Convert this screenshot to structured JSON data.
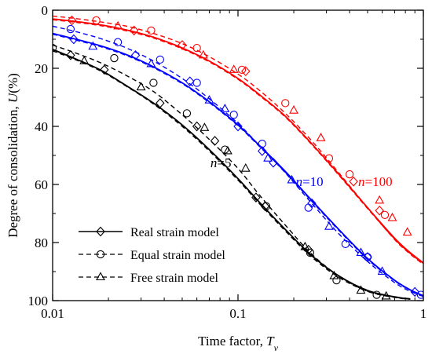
{
  "chart_data": {
    "type": "line",
    "xlabel": "Time factor, ",
    "xlabel_symbol": "T",
    "xlabel_sub": "v",
    "ylabel": "Degree of consolidation, ",
    "ylabel_symbol": "U",
    "ylabel_unit": "(%)",
    "x_scale": "log",
    "xlim": [
      0.01,
      1
    ],
    "ylim": [
      0,
      100
    ],
    "y_inverted": true,
    "grid": false,
    "x_ticks": [
      0.01,
      0.1,
      1
    ],
    "x_tick_labels": [
      "0.01",
      "0.1",
      "1"
    ],
    "y_ticks": [
      0,
      20,
      40,
      60,
      80,
      100
    ],
    "y_tick_labels": [
      "0",
      "20",
      "40",
      "60",
      "80",
      "100"
    ],
    "legend": {
      "placement": "bottom-left",
      "entries": [
        {
          "label": "Real strain model",
          "line": "solid",
          "marker": "diamond"
        },
        {
          "label": "Equal strain model",
          "line": "dashed",
          "marker": "circle"
        },
        {
          "label": "Free strain model",
          "line": "dashed",
          "marker": "triangle"
        }
      ]
    },
    "annotations": [
      {
        "text_italic": "n",
        "text": "=5",
        "color": "#000000",
        "x": 0.071,
        "y": 54
      },
      {
        "text_italic": "n",
        "text": "=10",
        "color": "#0000ff",
        "x": 0.205,
        "y": 60.5
      },
      {
        "text_italic": "n",
        "text": "=100",
        "color": "#ff0000",
        "x": 0.445,
        "y": 60.5
      }
    ],
    "groups": [
      {
        "n_label": "n=5",
        "color": "#000000",
        "series": [
          {
            "model": "Real strain",
            "line": "solid",
            "marker": "diamond",
            "x": [
              0.01,
              0.013,
              0.018,
              0.025,
              0.035,
              0.05,
              0.07,
              0.1,
              0.13,
              0.18,
              0.25,
              0.35,
              0.5,
              0.7,
              0.85
            ],
            "y": [
              13.5,
              16.5,
              20.5,
              26,
              32,
              39.5,
              48,
              58,
              66,
              75.5,
              84.5,
              91.5,
              96.5,
              98.7,
              99.4
            ],
            "marker_x": [
              0.0125,
              0.019,
              0.038,
              0.06,
              0.075,
              0.125,
              0.14,
              0.24
            ],
            "marker_y": [
              15.5,
              20.5,
              32,
              40,
              45,
              64.5,
              67.5,
              82.5
            ]
          },
          {
            "model": "Equal strain",
            "line": "dashed",
            "marker": "circle",
            "x": [
              0.01,
              0.013,
              0.018,
              0.025,
              0.035,
              0.05,
              0.07,
              0.1,
              0.13,
              0.18,
              0.25,
              0.35,
              0.5,
              0.7,
              0.85
            ],
            "y": [
              12,
              14.5,
              18,
              22.5,
              28,
              36,
              44.5,
              54.5,
              63.5,
              74,
              84,
              91.5,
              96.8,
              98.9,
              99.5
            ],
            "marker_x": [
              0.01,
              0.0215,
              0.035,
              0.053,
              0.085,
              0.142,
              0.245,
              0.34,
              0.56
            ],
            "marker_y": [
              13,
              16.5,
              25,
              35.5,
              48,
              67.5,
              83.5,
              93,
              98
            ]
          },
          {
            "model": "Free strain",
            "line": "dashed",
            "marker": "triangle",
            "x": [
              0.01,
              0.013,
              0.018,
              0.025,
              0.035,
              0.05,
              0.07,
              0.1,
              0.13,
              0.18,
              0.25,
              0.35,
              0.5,
              0.7,
              0.85
            ],
            "y": [
              14,
              16.8,
              20.8,
              26.2,
              32.3,
              40,
              48.5,
              58.5,
              66.5,
              76,
              85,
              92,
              96.8,
              98.8,
              99.5
            ],
            "marker_x": [
              0.0148,
              0.03,
              0.066,
              0.088,
              0.11,
              0.23,
              0.33,
              0.46,
              0.63
            ],
            "marker_y": [
              17.5,
              26.5,
              40.5,
              48.5,
              54.5,
              81.5,
              91.5,
              96.5,
              98.5
            ]
          }
        ]
      },
      {
        "n_label": "n=10",
        "color": "#0000ff",
        "series": [
          {
            "model": "Real strain",
            "line": "solid",
            "marker": "diamond",
            "x": [
              0.01,
              0.013,
              0.018,
              0.025,
              0.035,
              0.05,
              0.07,
              0.1,
              0.13,
              0.18,
              0.25,
              0.35,
              0.5,
              0.7,
              0.85,
              1
            ],
            "y": [
              8,
              9.8,
              12.2,
              15.3,
              19.5,
              25,
              31.5,
              39.5,
              46.5,
              55.5,
              65.5,
              75.5,
              85.5,
              93,
              96.3,
              98.3
            ],
            "marker_x": [
              0.013,
              0.028,
              0.055,
              0.1,
              0.135,
              0.155,
              0.25,
              0.5,
              0.9
            ],
            "marker_y": [
              10,
              15.5,
              24.5,
              40,
              48.5,
              52.5,
              66.5,
              85,
              97
            ]
          },
          {
            "model": "Equal strain",
            "line": "dashed",
            "marker": "circle",
            "x": [
              0.01,
              0.013,
              0.018,
              0.025,
              0.035,
              0.05,
              0.07,
              0.1,
              0.13,
              0.18,
              0.25,
              0.35,
              0.5,
              0.7,
              0.85,
              1
            ],
            "y": [
              5.5,
              7.2,
              9.7,
              13,
              17.5,
              23.5,
              30.5,
              39,
              46.5,
              56,
              66.5,
              77,
              86.5,
              93.8,
              96.8,
              98.6
            ],
            "marker_x": [
              0.0125,
              0.0225,
              0.038,
              0.06,
              0.095,
              0.135,
              0.24,
              0.38,
              0.5,
              0.97
            ],
            "marker_y": [
              6.5,
              11,
              17,
              25,
              36,
              46,
              68,
              80.5,
              85,
              98
            ]
          },
          {
            "model": "Free strain",
            "line": "dashed",
            "marker": "triangle",
            "x": [
              0.01,
              0.013,
              0.018,
              0.025,
              0.035,
              0.05,
              0.07,
              0.1,
              0.13,
              0.18,
              0.25,
              0.35,
              0.5,
              0.7,
              0.85,
              1
            ],
            "y": [
              8.3,
              10.1,
              12.5,
              15.6,
              19.8,
              25.3,
              31.8,
              39.8,
              46.8,
              55.8,
              65.8,
              75.8,
              85.8,
              93.2,
              96.4,
              98.4
            ],
            "marker_x": [
              0.0165,
              0.034,
              0.07,
              0.085,
              0.145,
              0.195,
              0.31,
              0.46,
              0.6
            ],
            "marker_y": [
              12.5,
              18.5,
              31,
              34,
              51,
              58.5,
              74.5,
              83.5,
              90
            ]
          }
        ]
      },
      {
        "n_label": "n=100",
        "color": "#ff0000",
        "series": [
          {
            "model": "Real strain",
            "line": "solid",
            "marker": "diamond",
            "x": [
              0.01,
              0.013,
              0.018,
              0.025,
              0.035,
              0.05,
              0.07,
              0.1,
              0.13,
              0.18,
              0.25,
              0.35,
              0.5,
              0.7,
              0.85,
              1
            ],
            "y": [
              3,
              3.8,
              5,
              6.8,
              9.3,
              13,
              17.5,
              23.5,
              29,
              36.5,
              46,
              56.5,
              68,
              78.5,
              83.5,
              87
            ],
            "marker_x": [
              0.0127,
              0.0275,
              0.05,
              0.11,
              0.42,
              0.58
            ],
            "marker_y": [
              3.5,
              7,
              12,
              21,
              59,
              69
            ]
          },
          {
            "model": "Equal strain",
            "line": "dashed",
            "marker": "circle",
            "x": [
              0.01,
              0.013,
              0.018,
              0.025,
              0.035,
              0.05,
              0.07,
              0.1,
              0.13,
              0.18,
              0.25,
              0.35,
              0.5,
              0.7,
              0.85,
              1
            ],
            "y": [
              2,
              2.8,
              4,
              5.5,
              8,
              11.5,
              16,
              22,
              27.5,
              35.5,
              45,
              56,
              68,
              79,
              84,
              87.5
            ],
            "marker_x": [
              0.0172,
              0.034,
              0.06,
              0.105,
              0.18,
              0.31,
              0.4,
              0.62
            ],
            "marker_y": [
              3.5,
              7,
              13,
              20.5,
              32,
              51,
              56.5,
              70.5
            ]
          },
          {
            "model": "Free strain",
            "line": "dashed",
            "marker": "triangle",
            "x": [
              0.01,
              0.013,
              0.018,
              0.025,
              0.035,
              0.05,
              0.07,
              0.1,
              0.13,
              0.18,
              0.25,
              0.35,
              0.5,
              0.7,
              0.85,
              1
            ],
            "y": [
              3.3,
              4.1,
              5.3,
              7.1,
              9.6,
              13.3,
              17.8,
              23.8,
              29.3,
              36.8,
              46.3,
              56.8,
              68.3,
              78.8,
              83.8,
              87.2
            ],
            "marker_x": [
              0.0225,
              0.065,
              0.095,
              0.2,
              0.28,
              0.58,
              0.68,
              0.82
            ],
            "marker_y": [
              5.5,
              15.5,
              20.5,
              34.5,
              44,
              65.5,
              71.5,
              76.5
            ]
          }
        ]
      }
    ]
  }
}
